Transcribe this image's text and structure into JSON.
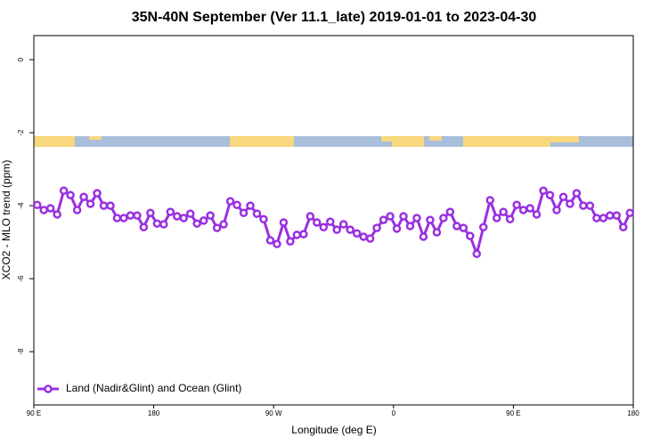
{
  "chart_data": {
    "type": "line",
    "title": "35N-40N September (Ver 11.1_late)   2019-01-01 to 2023-04-30",
    "xlabel": "Longitude (deg E)",
    "ylabel": "XCO2 - MLO trend (ppm)",
    "x": [
      92.5,
      97.5,
      102.5,
      107.5,
      112.5,
      117.5,
      122.5,
      127.5,
      132.5,
      137.5,
      142.5,
      147.5,
      152.5,
      157.5,
      162.5,
      167.5,
      172.5,
      177.5,
      182.5,
      187.5,
      192.5,
      197.5,
      202.5,
      207.5,
      212.5,
      217.5,
      222.5,
      227.5,
      232.5,
      237.5,
      242.5,
      247.5,
      252.5,
      257.5,
      262.5,
      267.5,
      272.5,
      277.5,
      282.5,
      287.5,
      292.5,
      297.5,
      302.5,
      307.5,
      312.5,
      317.5,
      322.5,
      327.5,
      332.5,
      337.5,
      342.5,
      347.5,
      352.5,
      357.5,
      362.5,
      367.5,
      372.5,
      377.5,
      382.5,
      387.5,
      392.5,
      397.5,
      402.5,
      407.5,
      412.5,
      417.5,
      422.5,
      427.5,
      432.5,
      437.5,
      442.5,
      447.5,
      452.5,
      457.5,
      462.5,
      467.5,
      472.5,
      477.5,
      482.5,
      487.5,
      492.5,
      497.5,
      502.5,
      507.5,
      512.5,
      517.5,
      522.5,
      527.5,
      532.5,
      537.5
    ],
    "series": [
      {
        "name": "Land (Nadir&Glint) and Ocean (Glint)",
        "color": "#9a30e0",
        "values": [
          -3.98,
          -4.12,
          -4.07,
          -4.24,
          -3.59,
          -3.71,
          -4.12,
          -3.76,
          -3.95,
          -3.66,
          -4.0,
          -4.0,
          -4.34,
          -4.34,
          -4.27,
          -4.27,
          -4.59,
          -4.2,
          -4.49,
          -4.51,
          -4.17,
          -4.29,
          -4.34,
          -4.22,
          -4.49,
          -4.41,
          -4.27,
          -4.61,
          -4.51,
          -3.88,
          -3.98,
          -4.2,
          -4.0,
          -4.22,
          -4.37,
          -4.95,
          -5.05,
          -4.46,
          -4.98,
          -4.8,
          -4.78,
          -4.29,
          -4.46,
          -4.59,
          -4.44,
          -4.66,
          -4.51,
          -4.66,
          -4.76,
          -4.85,
          -4.9,
          -4.61,
          -4.39,
          -4.29,
          -4.63,
          -4.29,
          -4.56,
          -4.34,
          -4.85,
          -4.39,
          -4.73,
          -4.34,
          -4.17,
          -4.56,
          -4.61,
          -4.83,
          -5.32,
          -4.59,
          -3.85,
          -4.34,
          -4.17,
          -4.37,
          -3.98,
          -4.12,
          -4.07,
          -4.24,
          -3.59,
          -3.71,
          -4.12,
          -3.76,
          -3.95,
          -3.66,
          -4.0,
          -4.0,
          -4.34,
          -4.34,
          -4.27,
          -4.27,
          -4.59,
          -4.2
        ]
      }
    ],
    "xlim": [
      90,
      540
    ],
    "xticks": [
      {
        "value": 90,
        "label": "90 E"
      },
      180,
      {
        "value": 270,
        "label": "90 W"
      },
      {
        "value": 360,
        "label": "0"
      },
      {
        "value": 450,
        "label": "90 E"
      },
      {
        "value": 540,
        "label": "180"
      }
    ],
    "ylim": [
      0.66,
      -9.46
    ],
    "yticks": [
      0,
      -2,
      -4,
      -6,
      -8
    ],
    "legend": "lower left"
  }
}
